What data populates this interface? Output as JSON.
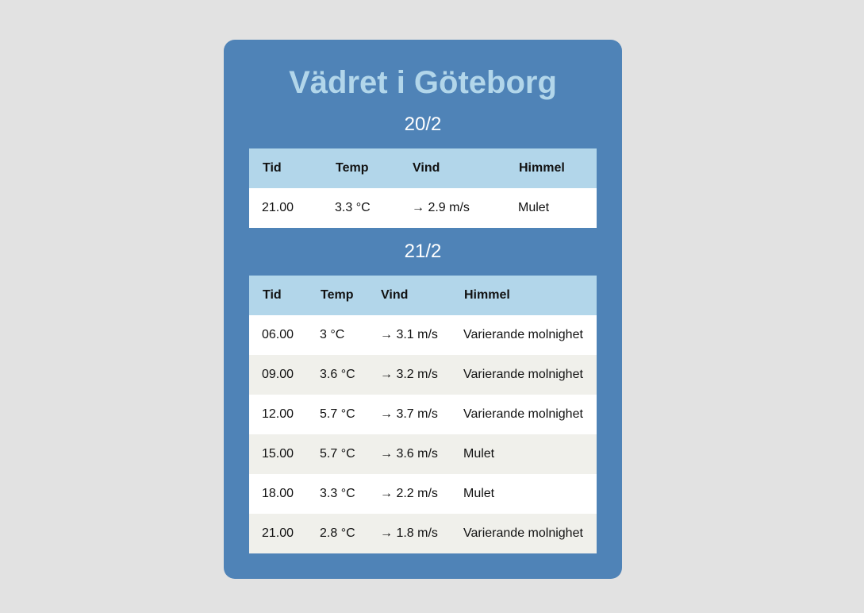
{
  "page": {
    "title": "Vädret i Göteborg"
  },
  "columns": {
    "time": "Tid",
    "temp": "Temp",
    "wind": "Vind",
    "sky": "Himmel"
  },
  "days": [
    {
      "date": "20/2",
      "rows": [
        {
          "time": "21.00",
          "temp": "3.3 °C",
          "wind": "→ 2.9 m/s",
          "sky": "Mulet"
        }
      ]
    },
    {
      "date": "21/2",
      "rows": [
        {
          "time": "06.00",
          "temp": "3 °C",
          "wind": "→ 3.1 m/s",
          "sky": "Varierande molnighet"
        },
        {
          "time": "09.00",
          "temp": "3.6 °C",
          "wind": "→ 3.2 m/s",
          "sky": "Varierande molnighet"
        },
        {
          "time": "12.00",
          "temp": "5.7 °C",
          "wind": "→ 3.7 m/s",
          "sky": "Varierande molnighet"
        },
        {
          "time": "15.00",
          "temp": "5.7 °C",
          "wind": "→ 3.6 m/s",
          "sky": "Mulet"
        },
        {
          "time": "18.00",
          "temp": "3.3 °C",
          "wind": "→ 2.2 m/s",
          "sky": "Mulet"
        },
        {
          "time": "21.00",
          "temp": "2.8 °C",
          "wind": "→ 1.8 m/s",
          "sky": "Varierande molnighet"
        }
      ]
    }
  ],
  "colors": {
    "background": "#e2e2e2",
    "card": "#4f83b7",
    "title": "#b2d6ea",
    "header_row": "#b2d6ea",
    "stripe": "#f0f0eb"
  }
}
